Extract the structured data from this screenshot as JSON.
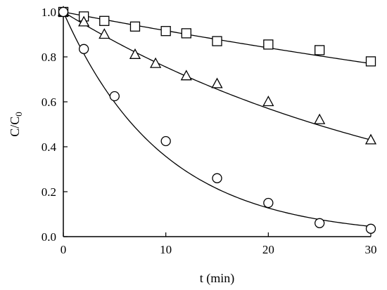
{
  "chart_data": {
    "type": "scatter",
    "xlabel": "t (min)",
    "ylabel_main": "C/C",
    "ylabel_sub": "0",
    "xlim": [
      0,
      30
    ],
    "ylim": [
      0.0,
      1.0
    ],
    "x_ticks": [
      0,
      10,
      20,
      30
    ],
    "x_tick_labels": [
      "0",
      "10",
      "20",
      "30"
    ],
    "y_ticks": [
      0.0,
      0.2,
      0.4,
      0.6,
      0.8,
      1.0
    ],
    "y_tick_labels": [
      "0.0",
      "0.2",
      "0.4",
      "0.6",
      "0.8",
      "1.0"
    ],
    "grid": false,
    "series": [
      {
        "marker": "square",
        "x": [
          0,
          2,
          4,
          7,
          10,
          12,
          15,
          20,
          25,
          30
        ],
        "y": [
          1.0,
          0.98,
          0.96,
          0.935,
          0.915,
          0.905,
          0.87,
          0.855,
          0.83,
          0.78
        ],
        "fit_k": 0.0087
      },
      {
        "marker": "triangle",
        "x": [
          0,
          2,
          4,
          7,
          9,
          12,
          15,
          20,
          25,
          30
        ],
        "y": [
          1.0,
          0.955,
          0.9,
          0.81,
          0.77,
          0.715,
          0.68,
          0.6,
          0.52,
          0.43
        ],
        "fit_k": 0.0281
      },
      {
        "marker": "circle",
        "x": [
          0,
          2,
          5,
          10,
          15,
          20,
          25,
          30
        ],
        "y": [
          1.0,
          0.835,
          0.625,
          0.425,
          0.26,
          0.15,
          0.06,
          0.035
        ],
        "fit_k": 0.103
      }
    ]
  }
}
